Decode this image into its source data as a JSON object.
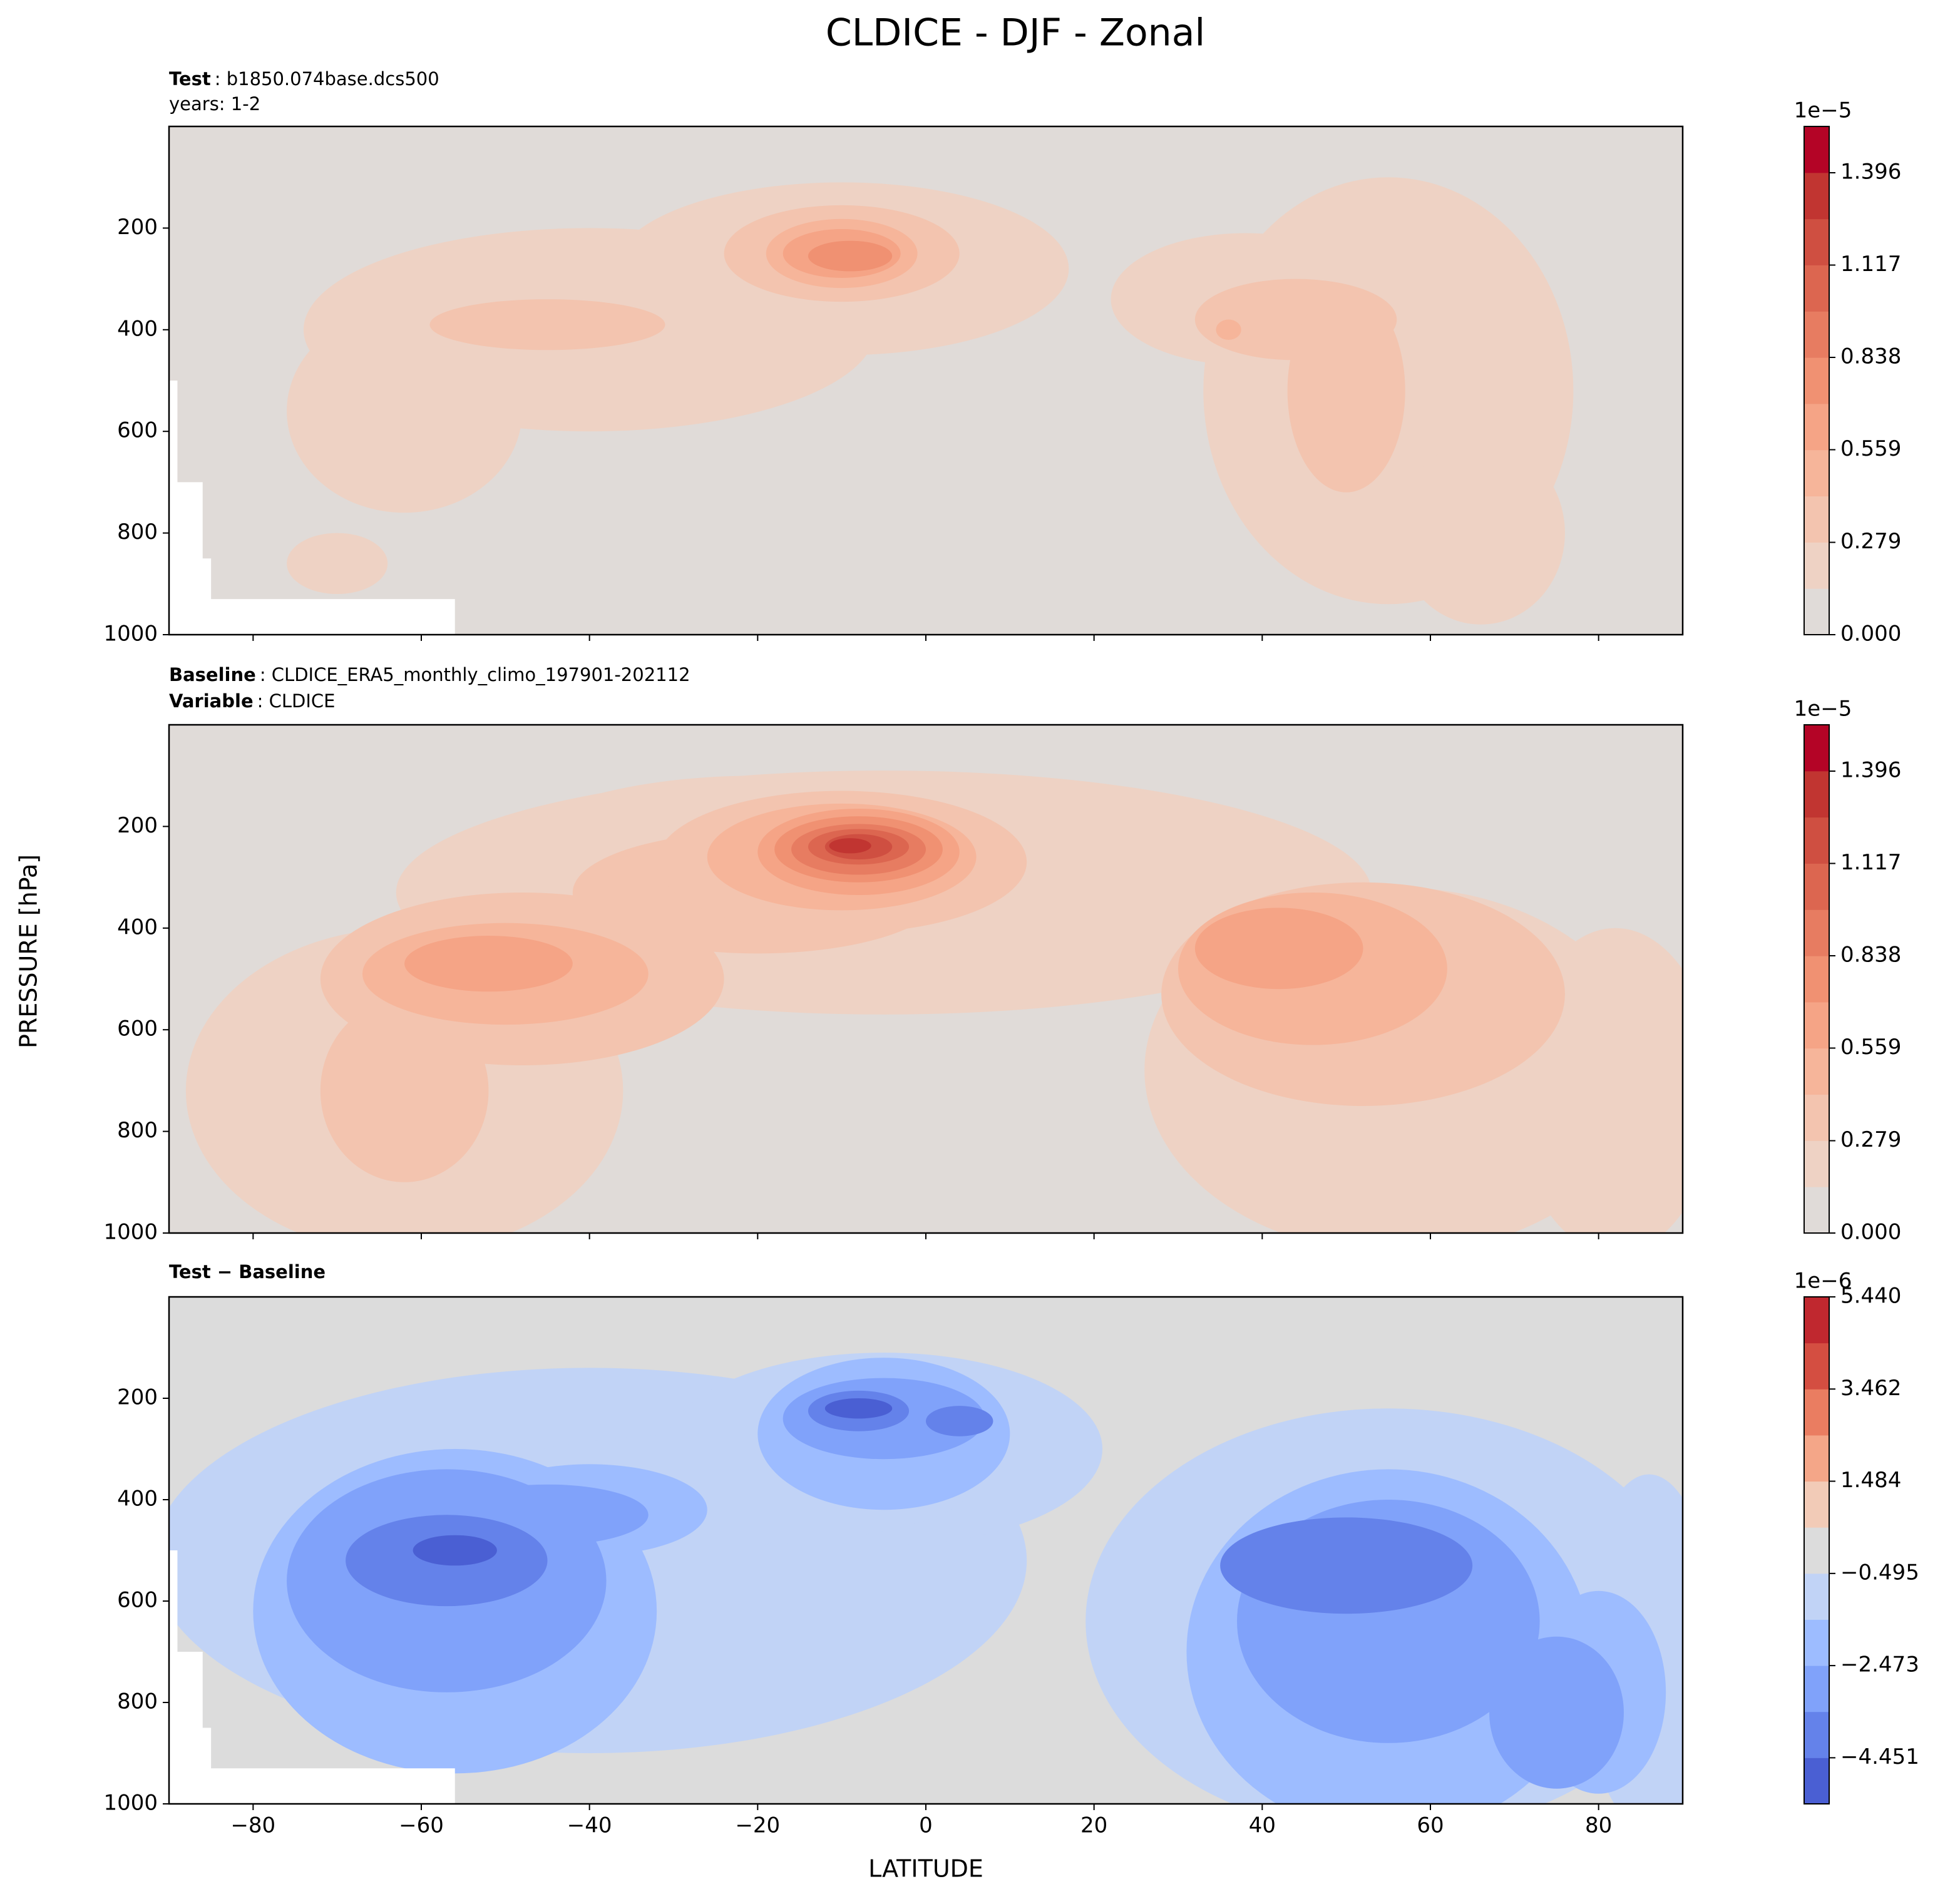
{
  "figure": {
    "title": "CLDICE - DJF - Zonal",
    "xlabel": "LATITUDE",
    "ylabel": "PRESSURE [hPa]"
  },
  "chart_data": [
    {
      "type": "contour",
      "subtitle_lines": [
        {
          "label": "Test",
          "text": ": b1850.074base.dcs500"
        },
        {
          "text": "years: 1-2"
        }
      ],
      "xlim": [
        -90,
        90
      ],
      "xticks": [
        {
          "value": -80,
          "label": "−80"
        },
        {
          "value": -60,
          "label": "−60"
        },
        {
          "value": -40,
          "label": "−40"
        },
        {
          "value": -20,
          "label": "−20"
        },
        0,
        20,
        40,
        60,
        80
      ],
      "ylim": [
        1000,
        0
      ],
      "yticks": [
        200,
        400,
        600,
        800,
        1000
      ],
      "clim": [
        0,
        1.536
      ],
      "cticks": [
        {
          "value": 0,
          "label": "0.000"
        },
        0.279,
        0.559,
        0.838,
        1.117,
        1.396
      ],
      "colorbar_offset": "1e−5",
      "colors": [
        "#e0dbd8",
        "#eed2c4",
        "#f3c4af",
        "#f6b59a",
        "#f5a486",
        "#f09172",
        "#e77c61",
        "#dc6650",
        "#cf4f41",
        "#c13531",
        "#b40426"
      ]
    },
    {
      "type": "contour",
      "subtitle_lines": [
        {
          "label": "Baseline",
          "text": ": CLDICE_ERA5_monthly_climo_197901-202112"
        },
        {
          "label": "Variable",
          "text": ": CLDICE"
        }
      ],
      "xlim": [
        -90,
        90
      ],
      "xticks": [
        {
          "value": -80,
          "label": "−80"
        },
        {
          "value": -60,
          "label": "−60"
        },
        {
          "value": -40,
          "label": "−40"
        },
        {
          "value": -20,
          "label": "−20"
        },
        0,
        20,
        40,
        60,
        80
      ],
      "ylim": [
        1000,
        0
      ],
      "yticks": [
        200,
        400,
        600,
        800,
        1000
      ],
      "clim": [
        0,
        1.536
      ],
      "cticks": [
        {
          "value": 0,
          "label": "0.000"
        },
        0.279,
        0.559,
        0.838,
        1.117,
        1.396
      ],
      "colorbar_offset": "1e−5",
      "colors": [
        "#e0dbd8",
        "#eed2c4",
        "#f3c4af",
        "#f6b59a",
        "#f5a486",
        "#f09172",
        "#e77c61",
        "#dc6650",
        "#cf4f41",
        "#c13531",
        "#b40426"
      ]
    },
    {
      "type": "contour",
      "subtitle_lines": [
        {
          "label": "Test − Baseline"
        }
      ],
      "xlim": [
        -90,
        90
      ],
      "xticks": [
        {
          "value": -80,
          "label": "−80"
        },
        {
          "value": -60,
          "label": "−60"
        },
        {
          "value": -40,
          "label": "−40"
        },
        {
          "value": -20,
          "label": "−20"
        },
        0,
        20,
        40,
        60,
        80
      ],
      "ylim": [
        1000,
        0
      ],
      "yticks": [
        200,
        400,
        600,
        800,
        1000
      ],
      "clim": [
        -5.44,
        5.44
      ],
      "cticks": [
        {
          "value": -4.451,
          "label": "−4.451"
        },
        {
          "value": -2.473,
          "label": "−2.473"
        },
        {
          "value": -0.495,
          "label": "−0.495"
        },
        1.484,
        3.462,
        {
          "value": 5.44,
          "label": "5.440"
        }
      ],
      "colorbar_offset": "1e−6",
      "colors": [
        "#4a5fd3",
        "#6482ea",
        "#80a2fa",
        "#9dbcff",
        "#c1d3f6",
        "#dcdcdc",
        "#f2cbb7",
        "#f4a688",
        "#ea7d61",
        "#d44e41",
        "#c0282f"
      ]
    }
  ]
}
